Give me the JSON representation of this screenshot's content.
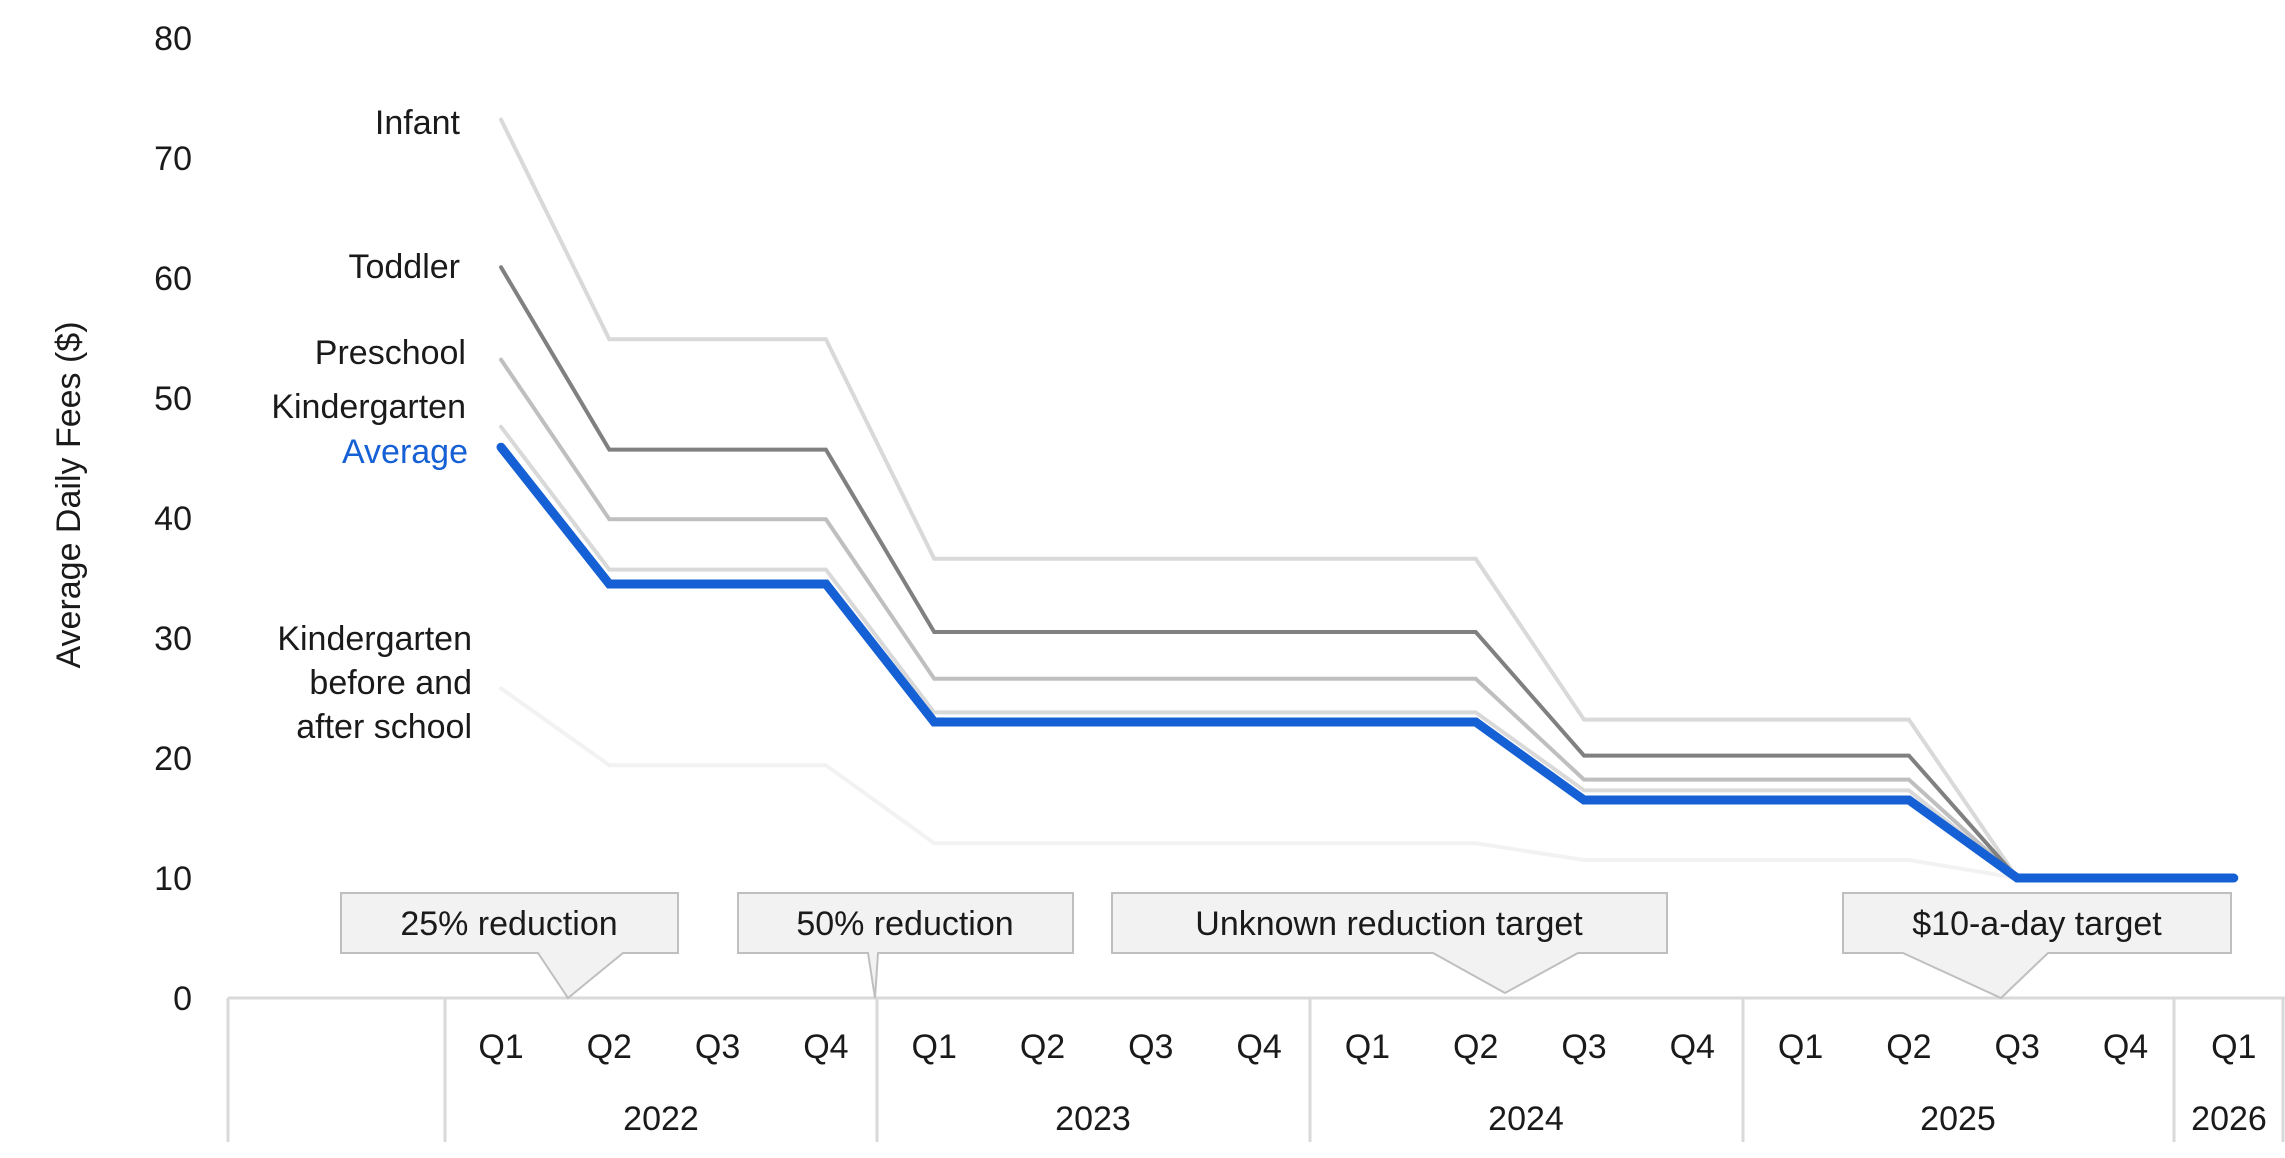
{
  "chart_data": {
    "type": "line",
    "ylabel": "Average Daily Fees ($)",
    "ylim": [
      0,
      80
    ],
    "yticks": [
      "0",
      "10",
      "20",
      "30",
      "40",
      "50",
      "60",
      "70",
      "80"
    ],
    "quarters": [
      "Q1",
      "Q2",
      "Q3",
      "Q4",
      "Q1",
      "Q2",
      "Q3",
      "Q4",
      "Q1",
      "Q2",
      "Q3",
      "Q4",
      "Q1",
      "Q2",
      "Q3",
      "Q4",
      "Q1"
    ],
    "years": [
      "2022",
      "2023",
      "2024",
      "2025",
      "2026"
    ],
    "series": [
      {
        "name": "Infant",
        "color": "#d9d9d9",
        "values": [
          73.2,
          54.9,
          54.9,
          54.9,
          36.6,
          36.6,
          36.6,
          36.6,
          36.6,
          36.6,
          23.2,
          23.2,
          23.2,
          23.2,
          10,
          10,
          10
        ]
      },
      {
        "name": "Toddler",
        "color": "#808080",
        "values": [
          60.9,
          45.7,
          45.7,
          45.7,
          30.5,
          30.5,
          30.5,
          30.5,
          30.5,
          30.5,
          20.2,
          20.2,
          20.2,
          20.2,
          10,
          10,
          10
        ]
      },
      {
        "name": "Preschool",
        "color": "#bfbfbf",
        "values": [
          53.2,
          39.9,
          39.9,
          39.9,
          26.6,
          26.6,
          26.6,
          26.6,
          26.6,
          26.6,
          18.2,
          18.2,
          18.2,
          18.2,
          10,
          10,
          10
        ]
      },
      {
        "name": "Kindergarten",
        "color": "#d9d9d9",
        "values": [
          47.6,
          35.7,
          35.7,
          35.7,
          23.8,
          23.8,
          23.8,
          23.8,
          23.8,
          23.8,
          17.3,
          17.3,
          17.3,
          17.3,
          10,
          10,
          10
        ]
      },
      {
        "name": "Kindergarten before and after school",
        "color": "#f2f2f2",
        "values": [
          25.8,
          19.4,
          19.4,
          19.4,
          12.9,
          12.9,
          12.9,
          12.9,
          12.9,
          12.9,
          11.5,
          11.5,
          11.5,
          11.5,
          10,
          10,
          10
        ]
      },
      {
        "name": "Average",
        "color": "#1560d4",
        "values": [
          45.9,
          34.5,
          34.5,
          34.5,
          23.0,
          23.0,
          23.0,
          23.0,
          23.0,
          23.0,
          16.5,
          16.5,
          16.5,
          16.5,
          10,
          10,
          10
        ]
      }
    ],
    "series_labels": {
      "infant": "Infant",
      "toddler": "Toddler",
      "preschool": "Preschool",
      "kindergarten": "Kindergarten",
      "average": "Average",
      "kba_line1": "Kindergarten",
      "kba_line2": "before and",
      "kba_line3": "after school"
    },
    "annotations": [
      {
        "text": "25% reduction",
        "points_to": "2022 Q2"
      },
      {
        "text": "50% reduction",
        "points_to": "2022 Q4"
      },
      {
        "text": "Unknown reduction target",
        "points_to": "2024 Q2"
      },
      {
        "text": "$10-a-day target",
        "points_to": "2025 Q3"
      }
    ],
    "grid": false,
    "legend": "none"
  }
}
